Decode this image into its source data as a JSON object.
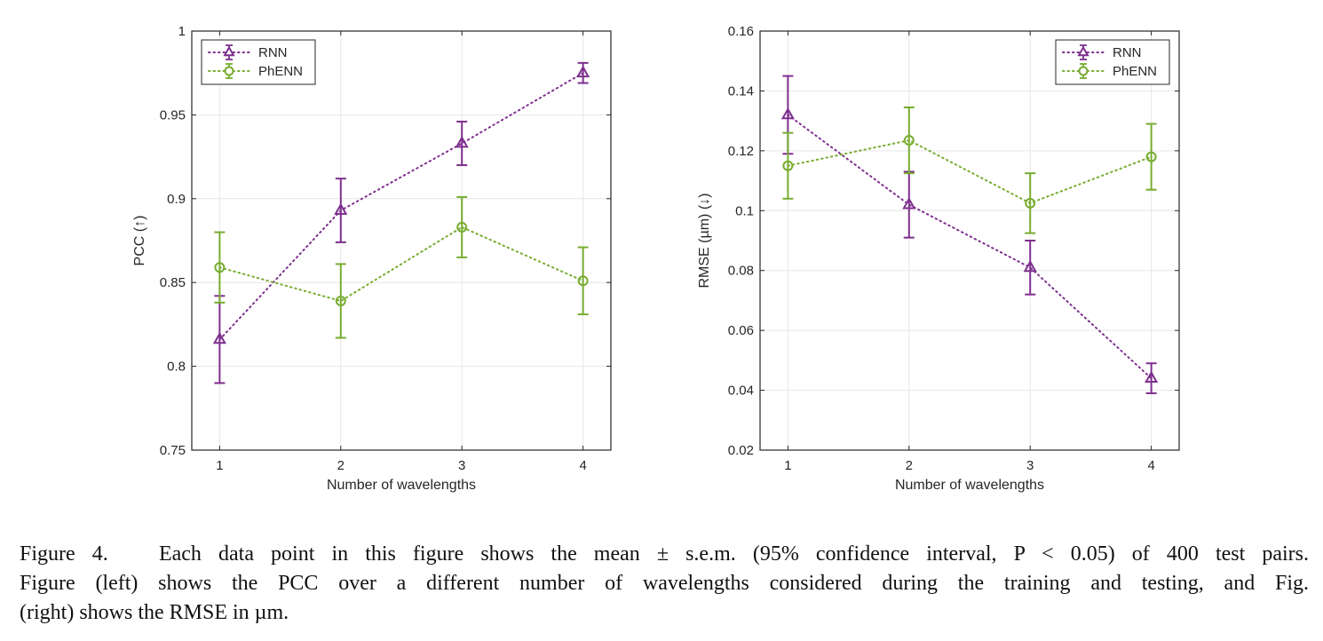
{
  "chart_data": [
    {
      "type": "line",
      "xlabel": "Number of wavelengths",
      "ylabel": "PCC (↑)",
      "x": [
        1,
        2,
        3,
        4
      ],
      "xlim": [
        0.77,
        4.23
      ],
      "ylim": [
        0.75,
        1
      ],
      "xticks": [
        "1",
        "2",
        "3",
        "4"
      ],
      "yticks": [
        "0.75",
        "0.8",
        "0.85",
        "0.9",
        "0.95",
        "1"
      ],
      "yticks_values": [
        0.75,
        0.8,
        0.85,
        0.9,
        0.95,
        1.0
      ],
      "grid": true,
      "legend_position": "top-left",
      "series": [
        {
          "name": "RNN",
          "marker": "triangle",
          "color": "#7E2F8E",
          "values": [
            0.816,
            0.893,
            0.933,
            0.975
          ],
          "errors": [
            0.026,
            0.019,
            0.013,
            0.006
          ]
        },
        {
          "name": "PhENN",
          "marker": "circle",
          "color": "#77AC30",
          "values": [
            0.859,
            0.839,
            0.883,
            0.851
          ],
          "errors": [
            0.021,
            0.022,
            0.018,
            0.02
          ]
        }
      ]
    },
    {
      "type": "line",
      "xlabel": "Number of wavelengths",
      "ylabel": "RMSE (µm) (↓)",
      "x": [
        1,
        2,
        3,
        4
      ],
      "xlim": [
        0.77,
        4.23
      ],
      "ylim": [
        0.02,
        0.16
      ],
      "xticks": [
        "1",
        "2",
        "3",
        "4"
      ],
      "yticks": [
        "0.02",
        "0.04",
        "0.06",
        "0.08",
        "0.1",
        "0.12",
        "0.14",
        "0.16"
      ],
      "yticks_values": [
        0.02,
        0.04,
        0.06,
        0.08,
        0.1,
        0.12,
        0.14,
        0.16
      ],
      "grid": true,
      "legend_position": "top-right",
      "series": [
        {
          "name": "RNN",
          "marker": "triangle",
          "color": "#7E2F8E",
          "values": [
            0.132,
            0.102,
            0.081,
            0.044
          ],
          "errors": [
            0.013,
            0.011,
            0.009,
            0.005
          ]
        },
        {
          "name": "PhENN",
          "marker": "circle",
          "color": "#77AC30",
          "values": [
            0.115,
            0.1235,
            0.1025,
            0.118
          ],
          "errors": [
            0.011,
            0.011,
            0.01,
            0.011
          ]
        }
      ]
    }
  ],
  "caption": {
    "line1": "Figure 4.   Each data point in this figure shows the mean ± s.e.m. (95% confidence interval, P < 0.05) of 400 test pairs.",
    "line2": "Figure (left) shows the PCC over a different number of wavelengths considered during the training and testing, and Fig.",
    "line3": "(right) shows the RMSE in µm."
  }
}
